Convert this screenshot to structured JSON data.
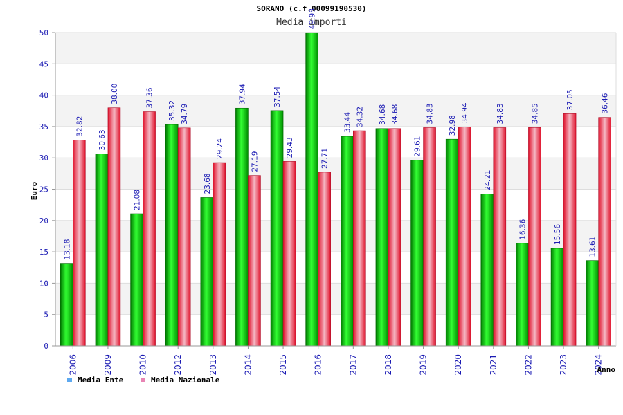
{
  "chart_data": {
    "type": "bar",
    "title": "SORANO (c.f.00099190530)",
    "subtitle": "Media importi",
    "xlabel": "Anno",
    "ylabel": "Euro",
    "ylim": [
      0,
      50
    ],
    "yticks": [
      "0",
      "5",
      "10",
      "15",
      "20",
      "25",
      "30",
      "35",
      "40",
      "45",
      "50"
    ],
    "grid": true,
    "legend_position": "bottom-left",
    "categories": [
      "2006",
      "2009",
      "2010",
      "2012",
      "2013",
      "2014",
      "2015",
      "2016",
      "2017",
      "2018",
      "2019",
      "2020",
      "2021",
      "2022",
      "2023",
      "2024"
    ],
    "series": [
      {
        "name": "Media Ente",
        "color": "#00b400",
        "legend_color": "#5da9f0",
        "values": [
          13.18,
          30.63,
          21.08,
          35.32,
          23.68,
          37.94,
          37.54,
          49.98,
          33.44,
          34.68,
          29.61,
          32.98,
          24.21,
          16.36,
          15.56,
          13.61
        ],
        "labels": [
          "13.18",
          "30.63",
          "21.08",
          "35.32",
          "23.68",
          "37.94",
          "37.54",
          "49.98",
          "33.44",
          "34.68",
          "29.61",
          "32.98",
          "24.21",
          "16.36",
          "15.56",
          "13.61"
        ]
      },
      {
        "name": "Media Nazionale",
        "color": "#e8243a",
        "legend_color": "#e884b4",
        "values": [
          32.82,
          38.0,
          37.36,
          34.79,
          29.24,
          27.19,
          29.43,
          27.71,
          34.32,
          34.68,
          34.83,
          34.94,
          34.83,
          34.85,
          37.05,
          36.46
        ],
        "labels": [
          "32.82",
          "38.00",
          "37.36",
          "34.79",
          "29.24",
          "27.19",
          "29.43",
          "27.71",
          "34.32",
          "34.68",
          "34.83",
          "34.94",
          "34.83",
          "34.85",
          "37.05",
          "36.46"
        ]
      }
    ]
  }
}
